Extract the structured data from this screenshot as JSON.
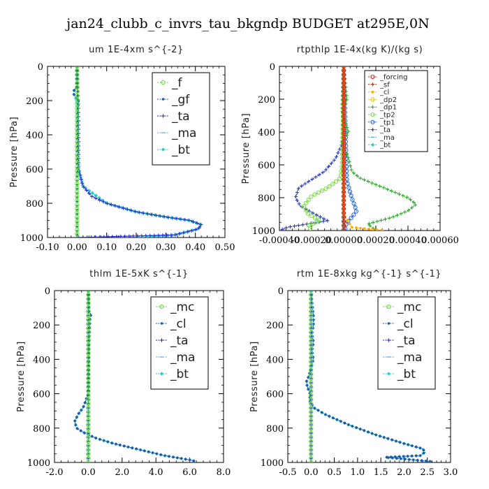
{
  "figure": {
    "title": "jan24_clubb_c_invrs_tau_bkgndp  BUDGET at295E,0N"
  },
  "chart_data": [
    {
      "type": "line",
      "title": "um   1E-4xm s^{-2}",
      "ylabel": "Pressure [hPa]",
      "xlim": [
        -0.1,
        0.5
      ],
      "ylim": [
        1000,
        0
      ],
      "xticks": [
        -0.1,
        0.0,
        0.1,
        0.2,
        0.3,
        0.4,
        0.5
      ],
      "xtick_labels": [
        "-0.10",
        "0.00",
        "0.10",
        "0.20",
        "0.30",
        "0.40",
        "0.50"
      ],
      "yticks": [
        0,
        200,
        400,
        600,
        800,
        1000
      ],
      "ytick_labels": [
        "0",
        "200",
        "400",
        "600",
        "800",
        "1000"
      ],
      "legend_position": "top-right",
      "legend_size": "large",
      "series": [
        {
          "name": "_f",
          "color": "#66dd44",
          "marker": "circle",
          "x": [
            0,
            0,
            0,
            0,
            0,
            0,
            0,
            0,
            0,
            0,
            0
          ],
          "y": [
            0,
            100,
            200,
            300,
            400,
            500,
            600,
            700,
            800,
            900,
            1000
          ]
        },
        {
          "name": "_gf",
          "color": "#1e5aa8",
          "marker": "dot",
          "x": [
            0,
            0,
            -0.01,
            -0.012,
            -0.005,
            0.005,
            0,
            0,
            0,
            0,
            0
          ],
          "y": [
            0,
            120,
            140,
            160,
            175,
            200,
            300,
            500,
            700,
            900,
            1000
          ]
        },
        {
          "name": "_ta",
          "color": "#2222cc",
          "marker": "plus",
          "x": [
            0,
            0.005,
            0.005,
            0.02,
            0.05,
            0.1,
            0.2,
            0.3,
            0.38,
            0.42,
            0.41,
            0.33,
            0
          ],
          "y": [
            0,
            300,
            600,
            700,
            760,
            800,
            850,
            880,
            900,
            925,
            950,
            985,
            1000
          ]
        },
        {
          "name": "_ma",
          "color": "#55aadd",
          "marker": "dash",
          "x": [
            0,
            0.005,
            0.005,
            0.02,
            0.05,
            0.1,
            0.2,
            0.3,
            0.38,
            0.42,
            0.41,
            0.33,
            0
          ],
          "y": [
            0,
            300,
            600,
            700,
            760,
            800,
            850,
            880,
            900,
            925,
            950,
            985,
            1000
          ]
        },
        {
          "name": "_bt",
          "color": "#22cccc",
          "marker": "diamond",
          "x": [
            0,
            0,
            -0.01,
            -0.012,
            0,
            0.005,
            0.02,
            0.1,
            0.2,
            0.3,
            0.38,
            0.42,
            0.41,
            0.33,
            0.2
          ],
          "y": [
            0,
            120,
            140,
            160,
            200,
            600,
            700,
            800,
            850,
            880,
            900,
            925,
            950,
            985,
            1000
          ]
        }
      ]
    },
    {
      "type": "line",
      "title": "rtpthlp   1E-4x(kg K)/(kg s)",
      "ylabel": "Pressure [hPa]",
      "xlim": [
        -0.0004,
        0.0006
      ],
      "ylim": [
        1000,
        0
      ],
      "xticks": [
        -0.0004,
        -0.0002,
        0.0,
        0.0002,
        0.0004,
        0.0006
      ],
      "xtick_labels": [
        "-0.00040",
        "-0.00020",
        "0.00000",
        "0.00020",
        "0.00040",
        "0.00060"
      ],
      "yticks": [
        0,
        200,
        400,
        600,
        800,
        1000
      ],
      "ytick_labels": [
        "0",
        "200",
        "400",
        "600",
        "800",
        "1000"
      ],
      "legend_position": "top-right",
      "legend_size": "small",
      "series": [
        {
          "name": "_forcing",
          "color": "#dd2222",
          "marker": "circle",
          "x": [
            0,
            0,
            0,
            0,
            0,
            0,
            0,
            0,
            0,
            0,
            0
          ],
          "y": [
            0,
            100,
            200,
            300,
            400,
            500,
            600,
            700,
            800,
            900,
            1000
          ]
        },
        {
          "name": "_sf",
          "color": "#bb2200",
          "marker": "plus",
          "x": [
            0,
            0,
            0,
            0,
            0,
            0,
            0,
            0,
            0,
            0,
            0
          ],
          "y": [
            0,
            100,
            200,
            300,
            400,
            500,
            600,
            700,
            800,
            900,
            1000
          ]
        },
        {
          "name": "_cl",
          "color": "#ffaa00",
          "marker": "dot",
          "x": [
            0,
            0,
            0,
            5e-05,
            0.0002,
            0.00025
          ],
          "y": [
            0,
            600,
            900,
            980,
            995,
            1000
          ]
        },
        {
          "name": "_dp2",
          "color": "#ddcc00",
          "marker": "circle",
          "x": [
            0,
            0,
            0,
            0,
            0,
            0
          ],
          "y": [
            0,
            200,
            400,
            600,
            800,
            1000
          ]
        },
        {
          "name": "_dp1",
          "color": "#22aa22",
          "marker": "plus",
          "x": [
            0,
            2e-05,
            -1e-05,
            3e-05,
            -1e-05,
            3e-05,
            5e-05,
            0.0001,
            0.00025,
            0.0004,
            0.00045,
            0.0004,
            0.0003,
            0.00015,
            0.0002
          ],
          "y": [
            0,
            200,
            280,
            400,
            470,
            560,
            640,
            680,
            740,
            800,
            840,
            880,
            920,
            960,
            1000
          ]
        },
        {
          "name": "_tp2",
          "color": "#77dd44",
          "marker": "circle",
          "x": [
            0,
            -1e-05,
            -2e-05,
            -0.0001,
            -0.0002,
            -0.00025,
            -0.00022,
            -0.00015,
            -0.00022,
            -0.0002
          ],
          "y": [
            0,
            600,
            680,
            740,
            790,
            850,
            900,
            940,
            970,
            1000
          ]
        },
        {
          "name": "_tp1",
          "color": "#2266cc",
          "marker": "circle",
          "x": [
            0,
            2e-05,
            5e-05,
            8e-05,
            5e-05,
            2e-05,
            1e-05,
            1e-05
          ],
          "y": [
            0,
            700,
            800,
            880,
            920,
            950,
            980,
            1000
          ]
        },
        {
          "name": "_ta",
          "color": "#2233bb",
          "marker": "plus",
          "x": [
            0,
            -1e-05,
            1e-05,
            -1e-05,
            -5e-05,
            -0.00012,
            -0.0002,
            -0.00028,
            -0.0003,
            -0.00027,
            -0.00018,
            -0.0001,
            -0.00035,
            -0.0004
          ],
          "y": [
            0,
            250,
            400,
            470,
            560,
            640,
            690,
            740,
            800,
            850,
            900,
            940,
            980,
            1000
          ]
        },
        {
          "name": "_ma",
          "color": "#55aadd",
          "marker": "dash",
          "x": [
            0,
            0,
            0,
            0,
            0,
            0
          ],
          "y": [
            0,
            200,
            400,
            600,
            800,
            1000
          ]
        },
        {
          "name": "_bt",
          "color": "#22cccc",
          "marker": "diamond",
          "x": [
            0,
            0,
            0,
            0,
            0,
            0
          ],
          "y": [
            0,
            200,
            400,
            600,
            800,
            1000
          ]
        }
      ]
    },
    {
      "type": "line",
      "title": "thlm   1E-5xK  s^{-1}",
      "ylabel": "Pressure [hPa]",
      "xlim": [
        -2.0,
        8.0
      ],
      "ylim": [
        1000,
        0
      ],
      "xticks": [
        -2.0,
        0.0,
        2.0,
        4.0,
        6.0,
        8.0
      ],
      "xtick_labels": [
        "-2.0",
        "0.0",
        "2.0",
        "4.0",
        "6.0",
        "8.0"
      ],
      "yticks": [
        0,
        200,
        400,
        600,
        800,
        1000
      ],
      "ytick_labels": [
        "0",
        "200",
        "400",
        "600",
        "800",
        "1000"
      ],
      "legend_position": "top-right",
      "legend_size": "large",
      "series": [
        {
          "name": "_mc",
          "color": "#66dd44",
          "marker": "circle",
          "x": [
            0,
            0,
            0,
            0,
            0,
            0,
            0,
            0,
            0,
            0,
            0
          ],
          "y": [
            0,
            100,
            200,
            300,
            400,
            500,
            600,
            700,
            800,
            900,
            1000
          ]
        },
        {
          "name": "_cl",
          "color": "#1e5aa8",
          "marker": "dot",
          "x": [
            0,
            0.05,
            0.15,
            0.1,
            0.05,
            0,
            -0.3,
            -0.6,
            -0.8,
            -0.7,
            -0.2,
            0.5,
            1.5,
            2.8,
            4.5,
            6.0,
            6.4
          ],
          "y": [
            0,
            120,
            140,
            160,
            300,
            600,
            680,
            720,
            760,
            800,
            830,
            860,
            890,
            920,
            960,
            985,
            995
          ]
        },
        {
          "name": "_ta",
          "color": "#2222cc",
          "marker": "plus",
          "x": [
            0,
            0,
            0,
            0
          ],
          "y": [
            0,
            400,
            800,
            1000
          ]
        },
        {
          "name": "_ma",
          "color": "#55aadd",
          "marker": "dash",
          "x": [
            0,
            0,
            0,
            0
          ],
          "y": [
            0,
            400,
            800,
            1000
          ]
        },
        {
          "name": "_bt",
          "color": "#22cccc",
          "marker": "diamond",
          "x": [
            0,
            0.05,
            0.15,
            0.1,
            0.05,
            0,
            -0.3,
            -0.6,
            -0.8,
            -0.7,
            -0.2,
            0.5,
            1.5,
            2.8,
            4.5,
            6.0,
            6.4
          ],
          "y": [
            0,
            120,
            140,
            160,
            300,
            600,
            680,
            720,
            760,
            800,
            830,
            860,
            890,
            920,
            960,
            985,
            995
          ]
        }
      ]
    },
    {
      "type": "line",
      "title": "rtm   1E-8xkg kg^{-1} s^{-1}",
      "ylabel": "Pressure [hPa]",
      "xlim": [
        -0.5,
        3.0
      ],
      "ylim": [
        1000,
        0
      ],
      "xticks": [
        -0.5,
        0.0,
        0.5,
        1.0,
        1.5,
        2.0,
        2.5,
        3.0
      ],
      "xtick_labels": [
        "-0.5",
        "0.0",
        "0.5",
        "1.0",
        "1.5",
        "2.0",
        "2.5",
        "3.0"
      ],
      "yticks": [
        0,
        200,
        400,
        600,
        800,
        1000
      ],
      "ytick_labels": [
        "0",
        "200",
        "400",
        "600",
        "800",
        "1000"
      ],
      "legend_position": "top-right",
      "legend_size": "large",
      "series": [
        {
          "name": "_mc",
          "color": "#66dd44",
          "marker": "circle",
          "x": [
            0,
            0,
            0,
            0,
            0,
            0,
            0,
            0,
            0,
            0,
            0
          ],
          "y": [
            0,
            100,
            200,
            300,
            400,
            500,
            600,
            700,
            800,
            900,
            1000
          ]
        },
        {
          "name": "_cl",
          "color": "#1e5aa8",
          "marker": "dot",
          "x": [
            0,
            0.05,
            0.05,
            0.02,
            0.05,
            0.02,
            0.05,
            0.0,
            -0.05,
            -0.1,
            -0.08,
            -0.02,
            -0.03,
            0.05,
            0.3,
            0.8,
            1.4,
            2.0,
            2.4,
            2.45,
            2.35,
            1.6,
            2.6
          ],
          "y": [
            0,
            150,
            200,
            250,
            300,
            350,
            400,
            450,
            500,
            530,
            560,
            600,
            640,
            680,
            720,
            780,
            840,
            890,
            920,
            940,
            960,
            970,
            995
          ]
        },
        {
          "name": "_ta",
          "color": "#2222cc",
          "marker": "plus",
          "x": [
            0,
            0,
            0,
            0
          ],
          "y": [
            0,
            400,
            800,
            1000
          ]
        },
        {
          "name": "_ma",
          "color": "#55aadd",
          "marker": "dash",
          "x": [
            0,
            0,
            0,
            0
          ],
          "y": [
            0,
            400,
            800,
            1000
          ]
        },
        {
          "name": "_bt",
          "color": "#22cccc",
          "marker": "diamond",
          "x": [
            0,
            0.05,
            0.05,
            0.02,
            0.05,
            0.02,
            0.05,
            0.0,
            -0.05,
            -0.1,
            -0.08,
            -0.02,
            -0.03,
            0.05,
            0.3,
            0.8,
            1.4,
            2.0,
            2.4,
            2.45,
            2.35,
            1.6,
            2.6
          ],
          "y": [
            0,
            150,
            200,
            250,
            300,
            350,
            400,
            450,
            500,
            530,
            560,
            600,
            640,
            680,
            720,
            780,
            840,
            890,
            920,
            940,
            960,
            970,
            995
          ]
        }
      ]
    }
  ]
}
